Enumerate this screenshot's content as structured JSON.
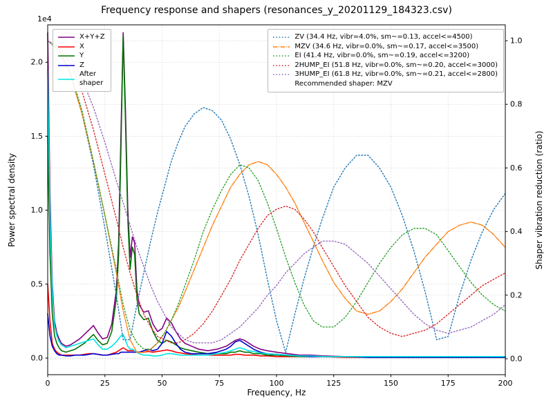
{
  "chart_data": {
    "type": "line",
    "title": "Frequency response and shapers (resonances_y_20201129_184323.csv)",
    "xlabel": "Frequency, Hz",
    "ylabel": "Power spectral density",
    "y2label": "Shaper vibration reduction (ratio)",
    "recommended_shaper": "MZV",
    "legend_note": "Recommended shaper: MZV",
    "x_axis": {
      "lim": [
        0,
        200
      ],
      "ticks": [
        0,
        25,
        50,
        75,
        100,
        125,
        150,
        175,
        200
      ],
      "tick_labels": [
        "0",
        "25",
        "50",
        "75",
        "100",
        "125",
        "150",
        "175",
        "200"
      ]
    },
    "left_axis": {
      "offset_text": "1e4",
      "lim": [
        -0.112,
        2.253
      ],
      "ticks": [
        0.0,
        0.5,
        1.0,
        1.5,
        2.0
      ],
      "tick_labels": [
        "0.0",
        "0.5",
        "1.0",
        "1.5",
        "2.0"
      ]
    },
    "right_axis": {
      "lim": [
        -0.05,
        1.05
      ],
      "ticks": [
        0.0,
        0.2,
        0.4,
        0.6,
        0.8,
        1.0
      ],
      "tick_labels": [
        "0.0",
        "0.2",
        "0.4",
        "0.6",
        "0.8",
        "1.0"
      ]
    },
    "psd_x": [
      0,
      1,
      2,
      3,
      4,
      5,
      6,
      8,
      10,
      12,
      14,
      16,
      18,
      20,
      22,
      24,
      26,
      28,
      30,
      31,
      32,
      33,
      34,
      35,
      36,
      37,
      38,
      39,
      40,
      42,
      44,
      46,
      48,
      50,
      52,
      54,
      56,
      58,
      60,
      63,
      66,
      70,
      74,
      78,
      80,
      82,
      84,
      86,
      88,
      90,
      93,
      96,
      100,
      105,
      110,
      115,
      120,
      130,
      140,
      150,
      160,
      170,
      180,
      190,
      200
    ],
    "psd_series": [
      {
        "name": "sum",
        "label": "X+Y+Z",
        "color": "#800080",
        "style": "solid",
        "units": "1e4",
        "y": [
          2.2,
          1.1,
          0.5,
          0.25,
          0.17,
          0.13,
          0.1,
          0.08,
          0.09,
          0.11,
          0.13,
          0.16,
          0.19,
          0.22,
          0.17,
          0.13,
          0.14,
          0.23,
          0.46,
          0.78,
          1.5,
          2.2,
          1.68,
          1.02,
          0.68,
          0.82,
          0.78,
          0.46,
          0.36,
          0.31,
          0.32,
          0.23,
          0.18,
          0.2,
          0.27,
          0.24,
          0.18,
          0.13,
          0.1,
          0.08,
          0.06,
          0.05,
          0.06,
          0.08,
          0.1,
          0.12,
          0.13,
          0.12,
          0.1,
          0.08,
          0.06,
          0.05,
          0.04,
          0.03,
          0.02,
          0.02,
          0.015,
          0.01,
          0.01,
          0.01,
          0.01,
          0.005,
          0.005,
          0.005,
          0.005
        ]
      },
      {
        "name": "x",
        "label": "X",
        "color": "#ff0000",
        "style": "solid",
        "units": "1e4",
        "y": [
          0.5,
          0.25,
          0.1,
          0.06,
          0.04,
          0.03,
          0.02,
          0.02,
          0.02,
          0.02,
          0.02,
          0.025,
          0.03,
          0.03,
          0.025,
          0.02,
          0.02,
          0.03,
          0.04,
          0.05,
          0.06,
          0.07,
          0.06,
          0.05,
          0.05,
          0.05,
          0.05,
          0.04,
          0.04,
          0.04,
          0.045,
          0.04,
          0.045,
          0.05,
          0.055,
          0.05,
          0.04,
          0.035,
          0.03,
          0.025,
          0.02,
          0.02,
          0.02,
          0.02,
          0.02,
          0.025,
          0.025,
          0.02,
          0.02,
          0.02,
          0.015,
          0.015,
          0.01,
          0.01,
          0.01,
          0.01,
          0.01,
          0.005,
          0.005,
          0.005,
          0.005,
          0.005,
          0.005,
          0.005,
          0.005
        ]
      },
      {
        "name": "y",
        "label": "Y",
        "color": "#007000",
        "style": "solid",
        "units": "1e4",
        "y": [
          1.5,
          0.7,
          0.3,
          0.15,
          0.1,
          0.07,
          0.05,
          0.04,
          0.05,
          0.06,
          0.08,
          0.1,
          0.13,
          0.16,
          0.12,
          0.09,
          0.1,
          0.18,
          0.4,
          0.7,
          1.4,
          2.18,
          1.6,
          0.95,
          0.6,
          0.75,
          0.7,
          0.4,
          0.3,
          0.26,
          0.27,
          0.18,
          0.12,
          0.1,
          0.12,
          0.11,
          0.09,
          0.07,
          0.06,
          0.05,
          0.04,
          0.03,
          0.03,
          0.03,
          0.04,
          0.04,
          0.05,
          0.04,
          0.04,
          0.03,
          0.03,
          0.02,
          0.02,
          0.015,
          0.01,
          0.01,
          0.01,
          0.01,
          0.005,
          0.005,
          0.005,
          0.005,
          0.005,
          0.005,
          0.005
        ]
      },
      {
        "name": "z",
        "label": "Z",
        "color": "#0000cc",
        "style": "solid",
        "units": "1e4",
        "y": [
          0.3,
          0.15,
          0.08,
          0.05,
          0.03,
          0.02,
          0.02,
          0.015,
          0.015,
          0.02,
          0.02,
          0.02,
          0.025,
          0.03,
          0.025,
          0.02,
          0.02,
          0.025,
          0.03,
          0.03,
          0.04,
          0.04,
          0.04,
          0.04,
          0.04,
          0.04,
          0.04,
          0.04,
          0.04,
          0.05,
          0.06,
          0.05,
          0.06,
          0.1,
          0.18,
          0.15,
          0.1,
          0.06,
          0.04,
          0.03,
          0.03,
          0.03,
          0.04,
          0.06,
          0.08,
          0.11,
          0.12,
          0.1,
          0.08,
          0.06,
          0.04,
          0.03,
          0.025,
          0.02,
          0.015,
          0.01,
          0.01,
          0.01,
          0.005,
          0.005,
          0.005,
          0.005,
          0.005,
          0.005,
          0.005
        ]
      },
      {
        "name": "after-shaper",
        "label": "After\nshaper",
        "color": "#00e5e5",
        "style": "solid",
        "units": "1e4",
        "y": [
          1.95,
          0.95,
          0.45,
          0.22,
          0.15,
          0.11,
          0.09,
          0.07,
          0.08,
          0.09,
          0.1,
          0.11,
          0.12,
          0.13,
          0.09,
          0.06,
          0.06,
          0.08,
          0.11,
          0.13,
          0.15,
          0.16,
          0.12,
          0.08,
          0.06,
          0.06,
          0.05,
          0.04,
          0.03,
          0.02,
          0.02,
          0.015,
          0.015,
          0.02,
          0.03,
          0.03,
          0.025,
          0.02,
          0.02,
          0.02,
          0.02,
          0.02,
          0.03,
          0.04,
          0.05,
          0.06,
          0.07,
          0.06,
          0.05,
          0.045,
          0.035,
          0.03,
          0.025,
          0.02,
          0.015,
          0.015,
          0.01,
          0.01,
          0.01,
          0.01,
          0.01,
          0.01,
          0.01,
          0.01,
          0.01
        ]
      }
    ],
    "shaper_x": [
      0,
      5,
      10,
      15,
      20,
      25,
      30,
      33,
      36,
      39,
      42,
      45,
      48,
      51,
      54,
      57,
      60,
      64,
      68,
      72,
      76,
      80,
      84,
      88,
      92,
      96,
      100,
      104,
      108,
      112,
      116,
      120,
      125,
      130,
      135,
      140,
      145,
      150,
      155,
      160,
      165,
      170,
      175,
      180,
      185,
      190,
      195,
      200
    ],
    "shaper_series": [
      {
        "name": "zv",
        "label": "ZV (34.4 Hz, vibr=4.0%, sm~=0.13, accel<=4500)",
        "freq_hz": 34.4,
        "vibr_pct": 4.0,
        "smoothing": 0.13,
        "max_accel": 4500,
        "color": "#1f77b4",
        "style": "dotted",
        "y": [
          1.0,
          0.97,
          0.9,
          0.77,
          0.61,
          0.41,
          0.2,
          0.06,
          0.06,
          0.17,
          0.27,
          0.37,
          0.46,
          0.54,
          0.62,
          0.68,
          0.73,
          0.77,
          0.79,
          0.78,
          0.75,
          0.69,
          0.61,
          0.51,
          0.39,
          0.25,
          0.12,
          0.02,
          0.14,
          0.25,
          0.35,
          0.44,
          0.54,
          0.6,
          0.64,
          0.64,
          0.6,
          0.54,
          0.45,
          0.34,
          0.21,
          0.06,
          0.07,
          0.2,
          0.31,
          0.4,
          0.47,
          0.52
        ]
      },
      {
        "name": "mzv",
        "label": "MZV (34.6 Hz, vibr=0.0%, sm~=0.17, accel<=3500)",
        "freq_hz": 34.6,
        "vibr_pct": 0.0,
        "smoothing": 0.17,
        "max_accel": 3500,
        "color": "#ff7f0e",
        "style": "dashdot",
        "y": [
          1.0,
          0.97,
          0.89,
          0.77,
          0.62,
          0.45,
          0.27,
          0.15,
          0.06,
          0.02,
          0.02,
          0.03,
          0.05,
          0.08,
          0.12,
          0.16,
          0.21,
          0.28,
          0.35,
          0.42,
          0.48,
          0.54,
          0.58,
          0.61,
          0.62,
          0.61,
          0.58,
          0.54,
          0.49,
          0.43,
          0.37,
          0.31,
          0.24,
          0.19,
          0.15,
          0.14,
          0.15,
          0.18,
          0.22,
          0.27,
          0.32,
          0.36,
          0.4,
          0.42,
          0.43,
          0.42,
          0.39,
          0.35
        ]
      },
      {
        "name": "ei",
        "label": "EI (41.4 Hz, vibr=0.0%, sm~=0.19, accel<=3200)",
        "freq_hz": 41.4,
        "vibr_pct": 0.0,
        "smoothing": 0.19,
        "max_accel": 3200,
        "color": "#2ca02c",
        "style": "dotted",
        "y": [
          1.0,
          0.97,
          0.9,
          0.78,
          0.62,
          0.45,
          0.28,
          0.17,
          0.09,
          0.05,
          0.03,
          0.03,
          0.05,
          0.08,
          0.12,
          0.17,
          0.23,
          0.31,
          0.4,
          0.47,
          0.53,
          0.58,
          0.61,
          0.6,
          0.56,
          0.49,
          0.41,
          0.32,
          0.24,
          0.17,
          0.12,
          0.1,
          0.1,
          0.13,
          0.18,
          0.24,
          0.3,
          0.35,
          0.39,
          0.41,
          0.41,
          0.39,
          0.34,
          0.29,
          0.24,
          0.2,
          0.17,
          0.15
        ]
      },
      {
        "name": "2hump-ei",
        "label": "2HUMP_EI (51.8 Hz, vibr=0.0%, sm~=0.20, accel<=3000)",
        "freq_hz": 51.8,
        "vibr_pct": 0.0,
        "smoothing": 0.2,
        "max_accel": 3000,
        "color": "#d62728",
        "style": "dotted",
        "y": [
          1.0,
          0.98,
          0.93,
          0.84,
          0.72,
          0.58,
          0.44,
          0.35,
          0.27,
          0.2,
          0.14,
          0.1,
          0.07,
          0.06,
          0.05,
          0.05,
          0.06,
          0.08,
          0.11,
          0.15,
          0.2,
          0.25,
          0.31,
          0.36,
          0.41,
          0.45,
          0.47,
          0.48,
          0.47,
          0.44,
          0.4,
          0.35,
          0.29,
          0.23,
          0.18,
          0.13,
          0.1,
          0.08,
          0.07,
          0.08,
          0.09,
          0.11,
          0.14,
          0.17,
          0.2,
          0.23,
          0.25,
          0.27
        ]
      },
      {
        "name": "3hump-ei",
        "label": "3HUMP_EI (61.8 Hz, vibr=0.0%, sm~=0.21, accel<=2800)",
        "freq_hz": 61.8,
        "vibr_pct": 0.0,
        "smoothing": 0.21,
        "max_accel": 2800,
        "color": "#9467bd",
        "style": "dotted",
        "y": [
          1.0,
          0.98,
          0.95,
          0.88,
          0.79,
          0.68,
          0.56,
          0.49,
          0.42,
          0.35,
          0.29,
          0.23,
          0.18,
          0.14,
          0.1,
          0.08,
          0.06,
          0.05,
          0.05,
          0.05,
          0.06,
          0.08,
          0.1,
          0.13,
          0.16,
          0.2,
          0.23,
          0.27,
          0.3,
          0.33,
          0.35,
          0.37,
          0.37,
          0.36,
          0.33,
          0.3,
          0.26,
          0.22,
          0.18,
          0.14,
          0.11,
          0.09,
          0.08,
          0.09,
          0.1,
          0.12,
          0.14,
          0.17
        ]
      }
    ],
    "grid": true,
    "legend_positions": {
      "psd": "upper left",
      "shapers": "upper right"
    }
  }
}
